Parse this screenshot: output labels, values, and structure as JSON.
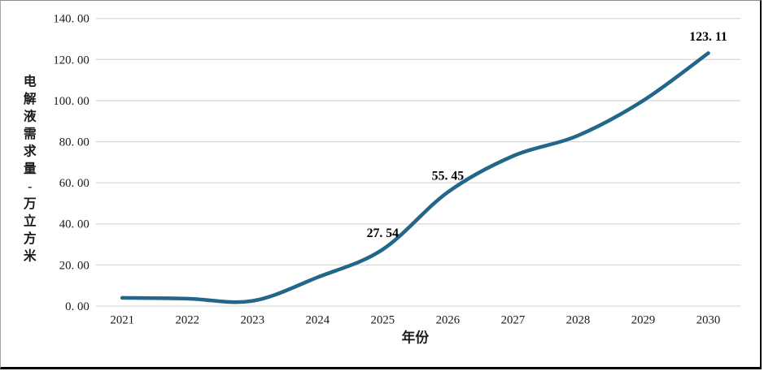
{
  "chart_data": {
    "type": "line",
    "title": "",
    "xlabel": "年份",
    "ylabel": "电解液需求量-万立方米",
    "ylabel_vertical_chars": [
      "电",
      "解",
      "液",
      "需",
      "求",
      "量",
      "-",
      "万",
      "立",
      "方",
      "米"
    ],
    "x": [
      2021,
      2022,
      2023,
      2024,
      2025,
      2026,
      2027,
      2028,
      2029,
      2030
    ],
    "x_tick_labels": [
      "2021",
      "2022",
      "2023",
      "2024",
      "2025",
      "2026",
      "2027",
      "2028",
      "2029",
      "2030"
    ],
    "series": [
      {
        "name": "电解液需求量",
        "values": [
          4.0,
          3.6,
          2.5,
          14.0,
          27.54,
          55.45,
          73.0,
          83.0,
          100.0,
          123.11
        ]
      }
    ],
    "point_labels": [
      {
        "x": 2025,
        "text": "27. 54"
      },
      {
        "x": 2026,
        "text": "55. 45"
      },
      {
        "x": 2030,
        "text": "123. 11"
      }
    ],
    "ylim": [
      0,
      140
    ],
    "y_tick_step": 20,
    "y_tick_labels": [
      "0. 00",
      "20. 00",
      "40. 00",
      "60. 00",
      "80. 00",
      "100. 00",
      "120. 00",
      "140. 00"
    ],
    "grid": true,
    "legend": "none",
    "colors": {
      "line": "#226789",
      "gridline": "#d9d9d9",
      "text": "#1a1a1a"
    }
  }
}
